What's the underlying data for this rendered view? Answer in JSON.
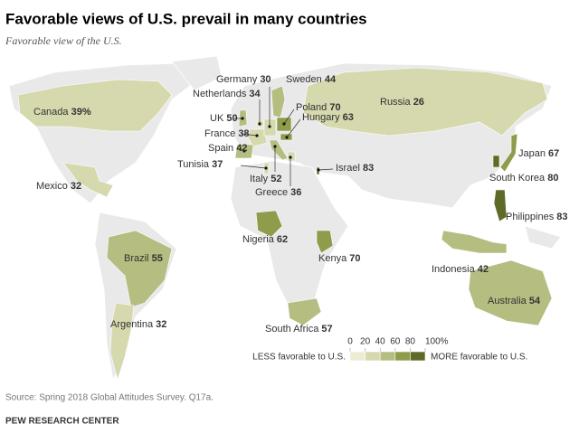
{
  "chart_data": {
    "type": "choropleth",
    "title": "Favorable views of U.S. prevail in many countries",
    "subtitle": "Favorable view of the U.S.",
    "categories": [
      "Canada",
      "Mexico",
      "Brazil",
      "Argentina",
      "Russia",
      "UK",
      "France",
      "Spain",
      "Netherlands",
      "Germany",
      "Sweden",
      "Poland",
      "Hungary",
      "Italy",
      "Greece",
      "Tunisia",
      "Israel",
      "Nigeria",
      "Kenya",
      "South Africa",
      "Japan",
      "South Korea",
      "Philippines",
      "Indonesia",
      "Australia"
    ],
    "values": [
      39,
      32,
      55,
      32,
      26,
      50,
      38,
      42,
      34,
      30,
      44,
      70,
      63,
      52,
      36,
      37,
      83,
      62,
      70,
      57,
      67,
      80,
      83,
      42,
      54
    ],
    "value_labels": [
      "39%",
      "32",
      "55",
      "32",
      "26",
      "50",
      "38",
      "42",
      "34",
      "30",
      "44",
      "70",
      "63",
      "52",
      "36",
      "37",
      "83",
      "62",
      "70",
      "57",
      "67",
      "80",
      "83",
      "42",
      "54"
    ],
    "colors": [
      "#ecebd6",
      "#d6d9ad",
      "#b5bd80",
      "#8f9c4c",
      "#5e6b27"
    ],
    "scale_ticks": [
      0,
      20,
      40,
      60,
      80,
      {
        "value": 100,
        "label": "100%"
      }
    ],
    "legend_low": "LESS favorable to U.S.",
    "legend_high": "MORE favorable to U.S."
  },
  "source": "Source: Spring 2018 Global Attitudes Survey. Q17a.",
  "footer": "PEW RESEARCH CENTER"
}
